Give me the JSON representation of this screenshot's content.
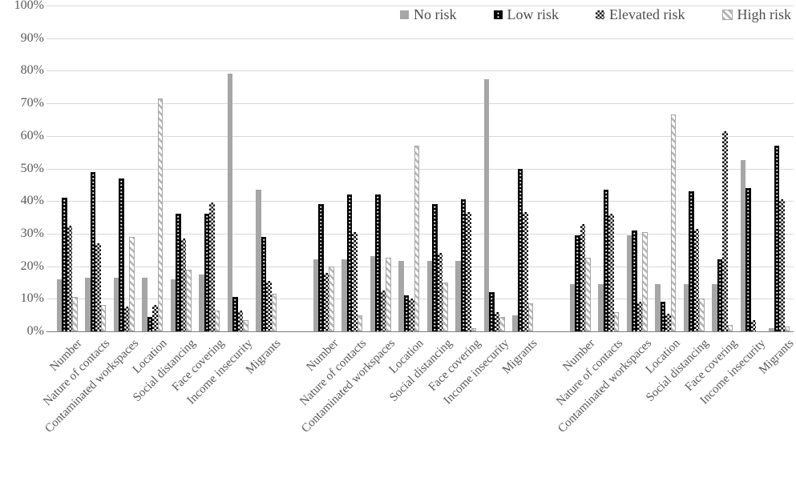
{
  "chart_data": {
    "type": "bar",
    "title": "",
    "xlabel": "",
    "ylabel": "",
    "ylim": [
      0,
      100
    ],
    "ytick_labels": [
      "0%",
      "10%",
      "20%",
      "30%",
      "40%",
      "50%",
      "60%",
      "70%",
      "80%",
      "90%",
      "100%"
    ],
    "grid": "horizontal",
    "legend_position": "top-right",
    "series_names": [
      "No risk",
      "Low risk",
      "Elevated risk",
      "High risk"
    ],
    "series_patterns": {
      "No risk": "solid-gray-square",
      "Low risk": "black-with-white-dots",
      "Elevated risk": "black-white-checkerboard",
      "High risk": "white-with-gray-diagonal-hatch"
    },
    "categories": [
      "Number",
      "Nature of contacts",
      "Contaminated workspaces",
      "Location",
      "Social distancing",
      "Face covering",
      "Income insecurity",
      "Migrants"
    ],
    "clusters": [
      {
        "name": "cluster-1",
        "series": [
          {
            "name": "No risk",
            "values": [
              16,
              16.5,
              16.5,
              16.5,
              16,
              17.5,
              79,
              43.5
            ]
          },
          {
            "name": "Low risk",
            "values": [
              41,
              49,
              47,
              4.5,
              36,
              36,
              10.5,
              29
            ]
          },
          {
            "name": "Elevated risk",
            "values": [
              32.5,
              27,
              7.5,
              8,
              28.5,
              39.5,
              6.5,
              15.5
            ]
          },
          {
            "name": "High risk",
            "values": [
              10.5,
              8,
              29,
              71.5,
              19,
              6.5,
              3.5,
              11.5
            ]
          }
        ]
      },
      {
        "name": "cluster-2",
        "series": [
          {
            "name": "No risk",
            "values": [
              22,
              22,
              23,
              21.5,
              21.5,
              21.5,
              77.5,
              5
            ]
          },
          {
            "name": "Low risk",
            "values": [
              39,
              42,
              42,
              11,
              39,
              40.5,
              12,
              50
            ]
          },
          {
            "name": "Elevated risk",
            "values": [
              18,
              30.5,
              12.5,
              10,
              24,
              36.5,
              6,
              36.5
            ]
          },
          {
            "name": "High risk",
            "values": [
              20,
              5,
              22.5,
              57,
              15,
              1,
              4.5,
              8.5
            ]
          }
        ]
      },
      {
        "name": "cluster-3",
        "series": [
          {
            "name": "No risk",
            "values": [
              14.5,
              14.5,
              29.5,
              14.5,
              14.5,
              14.5,
              52.5,
              1
            ]
          },
          {
            "name": "Low risk",
            "values": [
              29.5,
              43.5,
              31,
              9,
              43,
              22,
              44,
              57
            ]
          },
          {
            "name": "Elevated risk",
            "values": [
              33,
              36,
              9,
              5.5,
              31.5,
              61.5,
              3.5,
              40.5
            ]
          },
          {
            "name": "High risk",
            "values": [
              22.5,
              6,
              30.5,
              66.5,
              10,
              2,
              0,
              1.5
            ]
          }
        ]
      }
    ]
  },
  "colors": {
    "bar_gray": "#a6a6a6",
    "bar_black": "#000000",
    "hatch_stripe": "#b5b5b5",
    "gridline": "#d9d9d9",
    "axis_line": "#7f7f7f",
    "tick_text": "#595959",
    "legend_text": "#4d4d4d"
  }
}
